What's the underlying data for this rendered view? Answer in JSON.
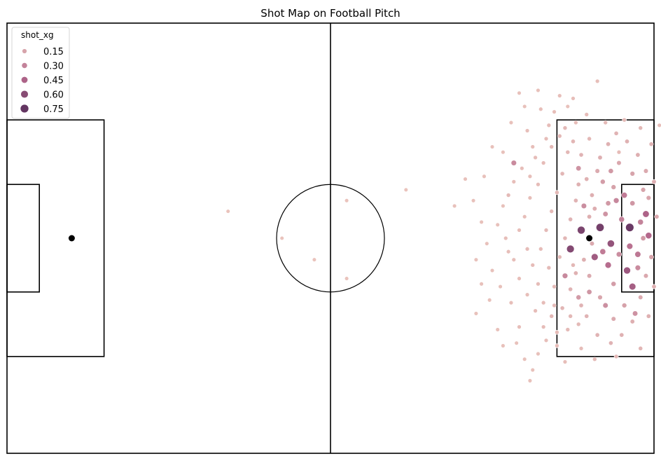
{
  "chart_data": {
    "type": "scatter",
    "title": "Shot Map on Football Pitch",
    "xlabel": "",
    "ylabel": "",
    "xlim": [
      0,
      120
    ],
    "ylim": [
      0,
      80
    ],
    "grid": false,
    "legend_placement": "top-left",
    "legend": {
      "title": "shot_xg",
      "entries": [
        {
          "label": "0.15",
          "value": 0.15
        },
        {
          "label": "0.30",
          "value": 0.3
        },
        {
          "label": "0.45",
          "value": 0.45
        },
        {
          "label": "0.60",
          "value": 0.6
        },
        {
          "label": "0.75",
          "value": 0.75
        }
      ]
    },
    "hue_range": [
      0.0,
      0.85
    ],
    "colors": {
      "low": "#ebc5bd",
      "mid": "#b3678b",
      "high": "#4a2654",
      "pitch_line": "#000000",
      "spot": "#000000"
    },
    "pitch": {
      "length": 120,
      "width": 80,
      "halfway_x": 60,
      "centre_circle": [
        60,
        40,
        10
      ],
      "penalty_box_depth": 18,
      "penalty_box_y": [
        18,
        62
      ],
      "six_yard_depth": 6,
      "six_yard_y": [
        30,
        50
      ],
      "penalty_spots": [
        [
          12,
          40
        ],
        [
          108,
          40
        ]
      ]
    },
    "points": [
      [
        113.5,
        56.0,
        0.04
      ],
      [
        109.5,
        69.2,
        0.03
      ],
      [
        104.0,
        64.5,
        0.02
      ],
      [
        121.0,
        61.0,
        0.03
      ],
      [
        118.0,
        49.0,
        0.15
      ],
      [
        108.0,
        44.0,
        0.1
      ],
      [
        105.0,
        35.0,
        0.06
      ],
      [
        110.0,
        42.0,
        0.68
      ],
      [
        112.0,
        39.0,
        0.55
      ],
      [
        115.5,
        42.0,
        0.72
      ],
      [
        117.0,
        37.0,
        0.35
      ],
      [
        116.0,
        31.0,
        0.48
      ],
      [
        114.0,
        43.5,
        0.3
      ],
      [
        111.5,
        35.0,
        0.4
      ],
      [
        106.5,
        41.5,
        0.65
      ],
      [
        109.0,
        36.5,
        0.5
      ],
      [
        113.0,
        47.0,
        0.28
      ],
      [
        104.5,
        38.0,
        0.62
      ],
      [
        118.5,
        44.5,
        0.45
      ],
      [
        115.0,
        34.0,
        0.52
      ],
      [
        106.0,
        53.0,
        0.22
      ],
      [
        110.5,
        50.5,
        0.18
      ],
      [
        112.0,
        52.5,
        0.2
      ],
      [
        107.0,
        46.0,
        0.25
      ],
      [
        114.5,
        48.0,
        0.33
      ],
      [
        103.5,
        33.0,
        0.27
      ],
      [
        108.0,
        30.0,
        0.21
      ],
      [
        111.0,
        27.5,
        0.24
      ],
      [
        116.5,
        26.0,
        0.23
      ],
      [
        106.0,
        29.0,
        0.19
      ],
      [
        94.0,
        54.0,
        0.26
      ],
      [
        93.0,
        48.0,
        0.05
      ],
      [
        85.0,
        51.0,
        0.02
      ],
      [
        74.0,
        49.0,
        0.01
      ],
      [
        83.0,
        46.0,
        0.02
      ],
      [
        51.0,
        40.0,
        0.01
      ],
      [
        57.0,
        36.0,
        0.01
      ],
      [
        63.0,
        32.5,
        0.01
      ],
      [
        41.0,
        45.0,
        0.01
      ],
      [
        63.0,
        47.0,
        0.01
      ],
      [
        87.0,
        26.0,
        0.02
      ],
      [
        91.0,
        23.0,
        0.02
      ],
      [
        95.0,
        23.5,
        0.03
      ],
      [
        100.0,
        21.0,
        0.03
      ],
      [
        98.5,
        18.5,
        0.02
      ],
      [
        96.0,
        17.5,
        0.02
      ],
      [
        92.0,
        20.0,
        0.02
      ],
      [
        97.0,
        13.5,
        0.02
      ],
      [
        102.0,
        20.0,
        0.04
      ],
      [
        104.0,
        23.0,
        0.05
      ],
      [
        106.0,
        24.0,
        0.05
      ],
      [
        101.0,
        25.5,
        0.06
      ],
      [
        89.0,
        39.0,
        0.02
      ],
      [
        88.0,
        43.0,
        0.02
      ],
      [
        90.0,
        34.0,
        0.02
      ],
      [
        91.5,
        31.0,
        0.02
      ],
      [
        93.5,
        28.0,
        0.03
      ],
      [
        93.0,
        37.5,
        0.03
      ],
      [
        95.0,
        41.5,
        0.03
      ],
      [
        96.0,
        44.0,
        0.03
      ],
      [
        97.0,
        47.5,
        0.03
      ],
      [
        98.5,
        50.0,
        0.04
      ],
      [
        99.5,
        54.0,
        0.04
      ],
      [
        101.0,
        57.0,
        0.05
      ],
      [
        102.5,
        59.0,
        0.06
      ],
      [
        100.5,
        61.0,
        0.04
      ],
      [
        96.5,
        60.0,
        0.03
      ],
      [
        97.5,
        57.0,
        0.03
      ],
      [
        95.5,
        53.0,
        0.03
      ],
      [
        94.0,
        50.5,
        0.03
      ],
      [
        92.0,
        46.0,
        0.02
      ],
      [
        91.0,
        42.5,
        0.02
      ],
      [
        92.5,
        40.0,
        0.03
      ],
      [
        94.0,
        36.0,
        0.03
      ],
      [
        95.0,
        32.5,
        0.03
      ],
      [
        96.5,
        29.5,
        0.03
      ],
      [
        98.0,
        26.5,
        0.04
      ],
      [
        99.5,
        23.5,
        0.04
      ],
      [
        103.0,
        27.0,
        0.07
      ],
      [
        104.5,
        30.5,
        0.08
      ],
      [
        105.5,
        33.5,
        0.09
      ],
      [
        107.0,
        36.0,
        0.1
      ],
      [
        108.5,
        39.0,
        0.12
      ],
      [
        109.0,
        45.5,
        0.11
      ],
      [
        108.5,
        48.0,
        0.1
      ],
      [
        107.5,
        51.0,
        0.09
      ],
      [
        106.5,
        55.5,
        0.08
      ],
      [
        105.0,
        58.0,
        0.07
      ],
      [
        103.5,
        60.5,
        0.06
      ],
      [
        104.0,
        56.0,
        0.06
      ],
      [
        103.0,
        52.0,
        0.07
      ],
      [
        102.0,
        48.5,
        0.06
      ],
      [
        101.0,
        45.0,
        0.05
      ],
      [
        100.0,
        41.5,
        0.05
      ],
      [
        99.0,
        38.0,
        0.04
      ],
      [
        100.5,
        34.5,
        0.05
      ],
      [
        101.5,
        31.0,
        0.05
      ],
      [
        102.5,
        36.5,
        0.06
      ],
      [
        103.5,
        40.0,
        0.07
      ],
      [
        104.5,
        43.5,
        0.08
      ],
      [
        105.5,
        47.0,
        0.08
      ],
      [
        106.0,
        50.0,
        0.09
      ],
      [
        110.0,
        55.0,
        0.1
      ],
      [
        111.5,
        57.5,
        0.09
      ],
      [
        113.0,
        59.5,
        0.08
      ],
      [
        115.0,
        58.0,
        0.09
      ],
      [
        117.0,
        55.5,
        0.1
      ],
      [
        118.5,
        52.5,
        0.12
      ],
      [
        119.0,
        47.5,
        0.14
      ],
      [
        118.0,
        40.0,
        0.2
      ],
      [
        119.5,
        36.5,
        0.15
      ],
      [
        118.5,
        33.0,
        0.13
      ],
      [
        117.5,
        29.0,
        0.12
      ],
      [
        116.0,
        24.5,
        0.1
      ],
      [
        114.0,
        22.0,
        0.09
      ],
      [
        112.0,
        20.5,
        0.08
      ],
      [
        109.5,
        22.0,
        0.08
      ],
      [
        107.5,
        25.5,
        0.08
      ],
      [
        110.0,
        29.0,
        0.14
      ],
      [
        112.5,
        31.5,
        0.18
      ],
      [
        113.5,
        37.0,
        0.25
      ],
      [
        111.0,
        44.5,
        0.22
      ],
      [
        112.5,
        49.5,
        0.16
      ],
      [
        116.0,
        46.5,
        0.21
      ],
      [
        117.5,
        43.0,
        0.3
      ],
      [
        90.0,
        57.0,
        0.02
      ],
      [
        88.5,
        51.5,
        0.02
      ],
      [
        86.5,
        47.0,
        0.02
      ],
      [
        87.0,
        36.0,
        0.02
      ],
      [
        88.0,
        31.5,
        0.02
      ],
      [
        89.5,
        28.5,
        0.02
      ],
      [
        99.0,
        64.0,
        0.03
      ],
      [
        101.5,
        63.5,
        0.03
      ],
      [
        105.5,
        61.5,
        0.04
      ],
      [
        108.0,
        58.5,
        0.06
      ],
      [
        96.0,
        64.5,
        0.02
      ],
      [
        93.5,
        61.5,
        0.02
      ],
      [
        92.0,
        56.0,
        0.02
      ],
      [
        97.5,
        15.5,
        0.02
      ],
      [
        94.5,
        20.5,
        0.02
      ],
      [
        103.5,
        17.0,
        0.03
      ],
      [
        106.5,
        19.5,
        0.04
      ],
      [
        109.0,
        17.5,
        0.05
      ],
      [
        113.0,
        18.0,
        0.06
      ],
      [
        117.5,
        19.5,
        0.07
      ],
      [
        119.0,
        25.5,
        0.09
      ],
      [
        120.0,
        31.0,
        0.1
      ],
      [
        120.5,
        44.0,
        0.12
      ],
      [
        120.0,
        50.5,
        0.11
      ],
      [
        119.5,
        57.5,
        0.08
      ],
      [
        117.5,
        60.5,
        0.06
      ],
      [
        114.5,
        62.0,
        0.05
      ],
      [
        111.0,
        61.5,
        0.05
      ],
      [
        107.5,
        63.0,
        0.04
      ],
      [
        105.0,
        66.0,
        0.03
      ],
      [
        102.5,
        66.5,
        0.03
      ],
      [
        98.5,
        67.5,
        0.02
      ],
      [
        95.0,
        67.0,
        0.02
      ],
      [
        100.0,
        58.5,
        0.04
      ],
      [
        98.0,
        55.0,
        0.04
      ],
      [
        97.0,
        51.5,
        0.03
      ],
      [
        96.5,
        38.0,
        0.04
      ],
      [
        97.5,
        35.0,
        0.04
      ],
      [
        98.5,
        31.5,
        0.04
      ],
      [
        99.5,
        28.0,
        0.04
      ],
      [
        101.5,
        27.5,
        0.05
      ],
      [
        102.0,
        22.5,
        0.04
      ],
      [
        104.5,
        25.5,
        0.06
      ],
      [
        106.5,
        27.5,
        0.08
      ],
      [
        108.0,
        33.0,
        0.12
      ],
      [
        110.5,
        37.5,
        0.33
      ],
      [
        111.5,
        46.5,
        0.2
      ],
      [
        109.5,
        52.5,
        0.12
      ],
      [
        113.5,
        54.0,
        0.13
      ],
      [
        116.0,
        52.0,
        0.15
      ],
      [
        114.5,
        27.5,
        0.16
      ],
      [
        112.5,
        25.0,
        0.12
      ],
      [
        115.5,
        38.5,
        0.38
      ],
      [
        117.0,
        34.5,
        0.26
      ],
      [
        119.0,
        40.5,
        0.42
      ]
    ]
  }
}
